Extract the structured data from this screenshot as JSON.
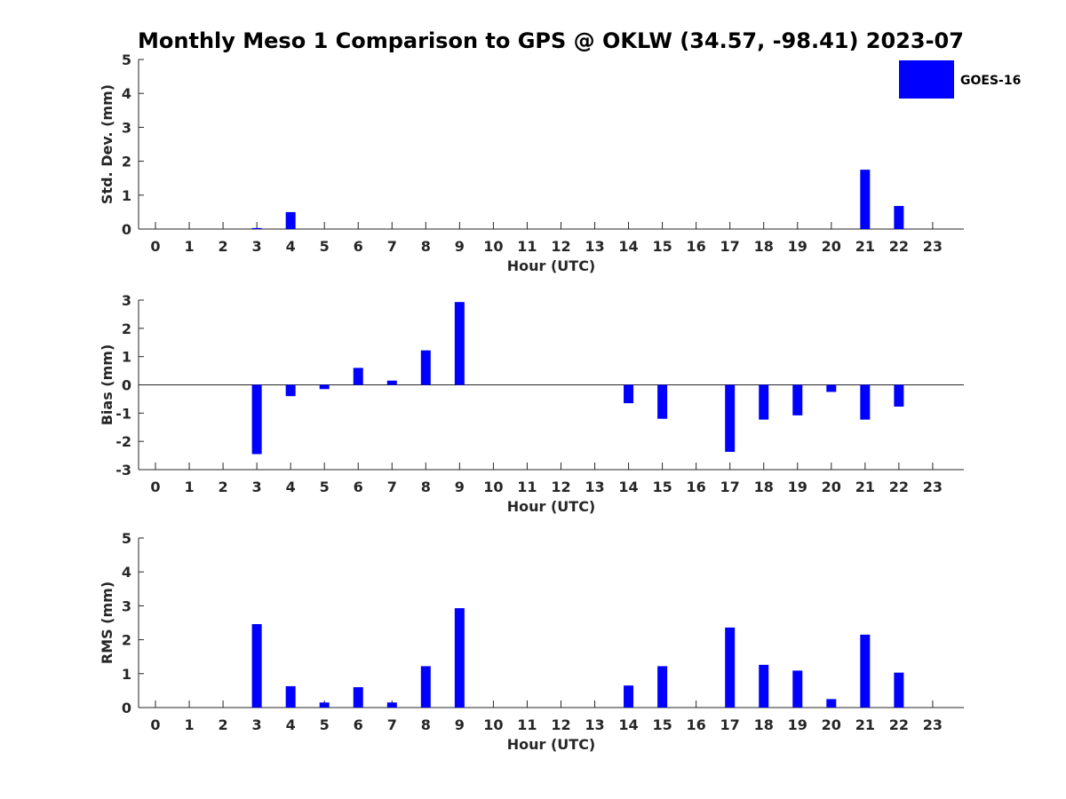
{
  "chart_data": {
    "title": "Monthly Meso 1 Comparison to GPS @ OKLW (34.57, -98.41) 2023-07",
    "legend": {
      "label": "GOES-16",
      "color": "#0000ff",
      "placement": "top-right"
    },
    "bar_color": "#0000ff",
    "categories": [
      0,
      1,
      2,
      3,
      4,
      5,
      6,
      7,
      8,
      9,
      10,
      11,
      12,
      13,
      14,
      15,
      16,
      17,
      18,
      19,
      20,
      21,
      22,
      23
    ],
    "panels": [
      {
        "type": "bar",
        "name": "stddev",
        "xlabel": "Hour (UTC)",
        "ylabel": "Std. Dev. (mm)",
        "ylim": [
          0,
          5
        ],
        "yticks": [
          0,
          1,
          2,
          3,
          4,
          5
        ],
        "values": [
          null,
          null,
          null,
          0.03,
          0.5,
          null,
          null,
          null,
          null,
          null,
          null,
          null,
          null,
          null,
          null,
          null,
          null,
          null,
          null,
          null,
          null,
          1.75,
          0.68,
          null
        ]
      },
      {
        "type": "bar",
        "name": "bias",
        "xlabel": "Hour (UTC)",
        "ylabel": "Bias (mm)",
        "ylim": [
          -3,
          3
        ],
        "yticks": [
          -3,
          -2,
          -1,
          0,
          1,
          2,
          3
        ],
        "values": [
          null,
          null,
          null,
          -2.45,
          -0.4,
          -0.15,
          0.6,
          0.15,
          1.22,
          2.93,
          null,
          null,
          null,
          null,
          -0.65,
          -1.2,
          null,
          -2.37,
          -1.23,
          -1.08,
          -0.25,
          -1.23,
          -0.77,
          null
        ]
      },
      {
        "type": "bar",
        "name": "rms",
        "xlabel": "Hour (UTC)",
        "ylabel": "RMS (mm)",
        "ylim": [
          0,
          5
        ],
        "yticks": [
          0,
          1,
          2,
          3,
          4,
          5
        ],
        "values": [
          null,
          null,
          null,
          2.46,
          0.63,
          0.15,
          0.6,
          0.15,
          1.22,
          2.93,
          null,
          null,
          null,
          null,
          0.65,
          1.22,
          null,
          2.36,
          1.26,
          1.09,
          0.25,
          2.15,
          1.03,
          null
        ]
      }
    ]
  }
}
